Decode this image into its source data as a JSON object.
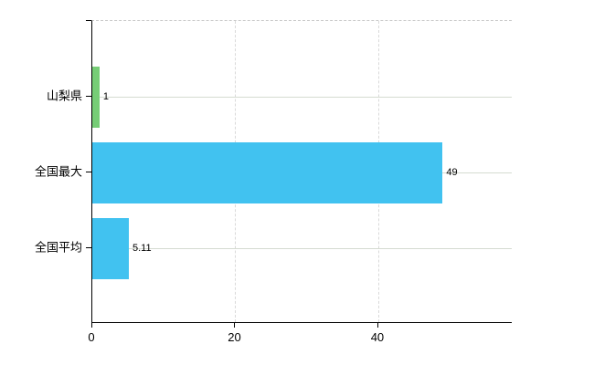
{
  "chart_data": {
    "type": "bar",
    "orientation": "horizontal",
    "title": "",
    "xlabel": "",
    "ylabel": "",
    "categories": [
      "山梨県",
      "全国最大",
      "全国平均"
    ],
    "values": [
      1,
      49,
      5.11
    ],
    "value_labels": [
      "1",
      "49",
      "5.11"
    ],
    "bar_colors": [
      "#76cd76",
      "#41c2f0",
      "#41c2f0"
    ],
    "x_ticks": [
      0,
      20,
      40
    ],
    "x_tick_labels": [
      "0",
      "20",
      "40"
    ],
    "xlim": [
      0,
      58.8
    ],
    "grid": {
      "horizontal": "solid light line at each category center",
      "vertical": "dashed light line at each x tick",
      "frame_top": "dashed light line"
    },
    "legend": "none"
  },
  "colors": {
    "background": "#ffffff",
    "axis": "#000000",
    "bar_green": "#76cd76",
    "bar_blue": "#41c2f0",
    "grid_horizontal": "#d5dbd1",
    "grid_vertical": "#d9d9d9",
    "frame_top_dashed": "#c9c9c9",
    "text": "#000000"
  }
}
